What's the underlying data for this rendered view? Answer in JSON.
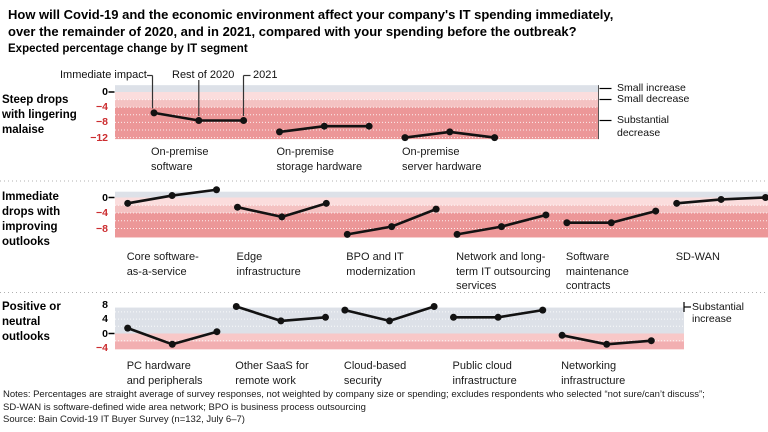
{
  "header": {
    "title": "How will Covid-19 and the economic environment affect your company's IT spending immediately,\nover the remainder of 2020, and in 2021, compared with your spending before the outbreak?",
    "subtitle": "Expected percentage change by IT segment"
  },
  "legend": {
    "items": [
      "Immediate impact",
      "Rest of 2020",
      "2021"
    ]
  },
  "colors": {
    "band_gray": "#dde1e8",
    "band_pink_light": "#fbdddd",
    "band_pink_mid": "#f4c2c2",
    "band_pink_dark": "#ec9798",
    "band_p3_pink_light": "#f8c8c8",
    "band_p3_pink_dark": "#f2afb1",
    "line": "#121212",
    "tick_negative": "#cc2d30",
    "tick_positive": "#000000",
    "separator": "#b0b0b0"
  },
  "chart_data": [
    {
      "type": "line",
      "group_label": "Steep drops\nwith lingering\nmalaise",
      "x_points": [
        "Immediate impact",
        "Rest of 2020",
        "2021"
      ],
      "ticks": [
        0,
        -4,
        -8,
        -12
      ],
      "ylim": [
        -12.4,
        1.8
      ],
      "series": [
        {
          "name": "On-premise software",
          "label": "On-premise\nsoftware",
          "values": [
            -5.5,
            -7.5,
            -7.5
          ]
        },
        {
          "name": "On-premise storage hardware",
          "label": "On-premise\nstorage hardware",
          "values": [
            -10.5,
            -9,
            -9
          ]
        },
        {
          "name": "On-premise server hardware",
          "label": "On-premise\nserver hardware",
          "values": [
            -12,
            -10.5,
            -12
          ]
        }
      ],
      "right_labels": [
        "Small increase",
        "Small decrease",
        "Substantial\ndecrease"
      ]
    },
    {
      "type": "line",
      "group_label": "Immediate\ndrops with\nimproving\noutlooks",
      "x_points": [
        "Immediate impact",
        "Rest of 2020",
        "2021"
      ],
      "ticks": [
        0,
        -4,
        -8
      ],
      "ylim": [
        -10.3,
        1.5
      ],
      "series": [
        {
          "name": "Core software-as-a-service",
          "label": "Core software-\nas-a-service",
          "values": [
            -1.5,
            0.5,
            2
          ]
        },
        {
          "name": "Edge infrastructure",
          "label": "Edge\ninfrastructure",
          "values": [
            -2.5,
            -5,
            -1.5
          ]
        },
        {
          "name": "BPO and IT modernization",
          "label": "BPO and IT\nmodernization",
          "values": [
            -9.5,
            -7.5,
            -3
          ]
        },
        {
          "name": "Network and long-term IT outsourcing services",
          "label": "Network and long-\nterm IT outsourcing\nservices",
          "values": [
            -9.5,
            -7.5,
            -4.5
          ]
        },
        {
          "name": "Software maintenance contracts",
          "label": "Software\nmaintenance\ncontracts",
          "values": [
            -6.5,
            -6.5,
            -3.5
          ]
        },
        {
          "name": "SD-WAN",
          "label": "SD-WAN",
          "values": [
            -1.5,
            -0.5,
            0
          ]
        }
      ],
      "right_labels": []
    },
    {
      "type": "line",
      "group_label": "Positive or\nneutral\noutlooks",
      "x_points": [
        "Immediate impact",
        "Rest of 2020",
        "2021"
      ],
      "ticks": [
        8,
        4,
        0,
        -4
      ],
      "ylim": [
        -4.4,
        7.2
      ],
      "series": [
        {
          "name": "PC hardware and peripherals",
          "label": "PC hardware\nand peripherals",
          "values": [
            1.5,
            -3,
            0.5
          ]
        },
        {
          "name": "Other SaaS for remote work",
          "label": "Other SaaS for\nremote work",
          "values": [
            7.5,
            3.5,
            4.5
          ]
        },
        {
          "name": "Cloud-based security",
          "label": "Cloud-based\nsecurity",
          "values": [
            6.5,
            3.5,
            7.5
          ]
        },
        {
          "name": "Public cloud infrastructure",
          "label": "Public cloud\ninfrastructure",
          "values": [
            4.5,
            4.5,
            6.5
          ]
        },
        {
          "name": "Networking infrastructure",
          "label": "Networking\ninfrastructure",
          "values": [
            -0.5,
            -3,
            -2
          ]
        }
      ],
      "right_labels": [
        "Substantial\nincrease"
      ]
    }
  ],
  "notes": {
    "note_lines": "Notes: Percentages are straight average of survey responses, not weighted by company size or spending; excludes respondents who selected “not sure/can’t discuss”;\nSD-WAN is software-defined wide area network; BPO is business process outsourcing",
    "source": "Source: Bain Covid-19 IT Buyer Survey (n=132, July 6–7)"
  }
}
